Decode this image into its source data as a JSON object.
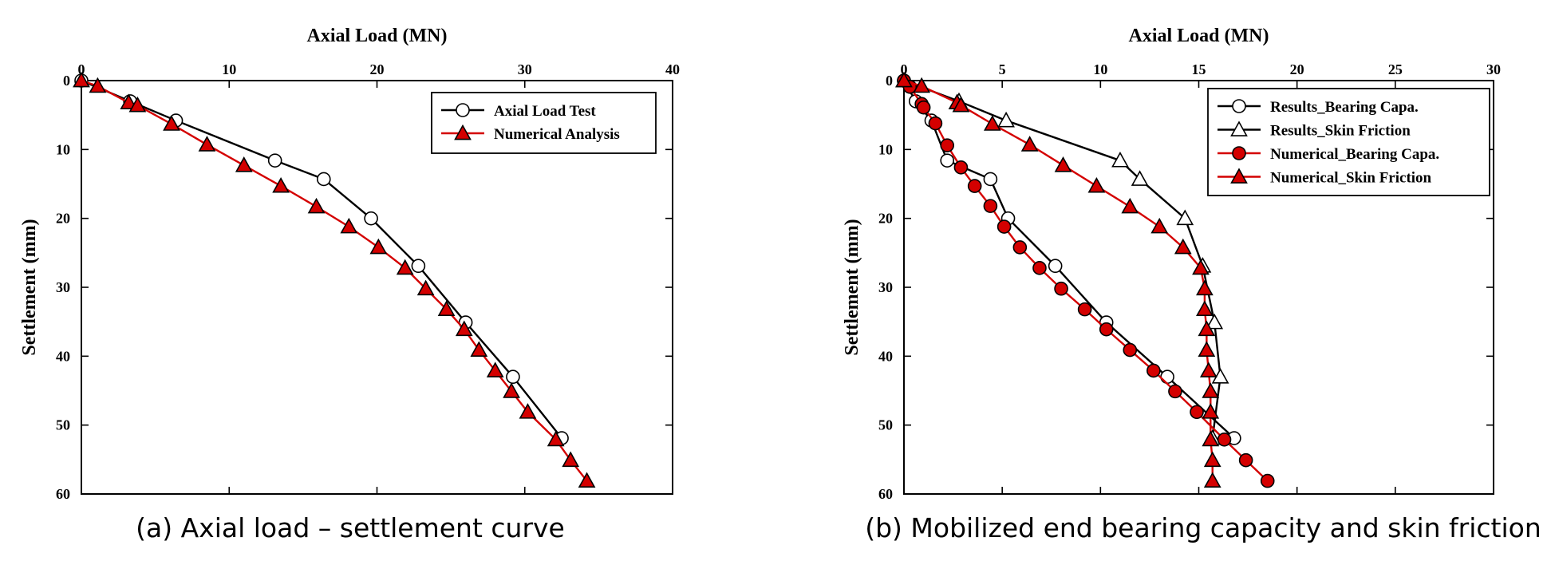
{
  "chart_data": [
    {
      "type": "line",
      "title": "",
      "xlabel": "Axial Load (MN)",
      "ylabel": "Settlement (mm)",
      "xlim": [
        0,
        40
      ],
      "ylim": [
        0,
        60
      ],
      "x_ticks": [
        0,
        10,
        20,
        30,
        40
      ],
      "y_ticks": [
        0,
        10,
        20,
        30,
        40,
        50,
        60
      ],
      "y_inverted": true,
      "x_axis_position": "top",
      "grid": false,
      "legend_position": "top-right",
      "caption": "(a) Axial load – settlement curve",
      "series": [
        {
          "name": "Axial Load Test",
          "color": "#000000",
          "marker": "circle-open",
          "points": [
            [
              0,
              0
            ],
            [
              3.3,
              3
            ],
            [
              6.4,
              5.8
            ],
            [
              13.1,
              11.6
            ],
            [
              16.4,
              14.3
            ],
            [
              19.6,
              20
            ],
            [
              22.8,
              26.9
            ],
            [
              26,
              35.1
            ],
            [
              29.2,
              43
            ],
            [
              32.5,
              51.9
            ]
          ]
        },
        {
          "name": "Numerical Analysis",
          "color": "#d40000",
          "marker": "triangle-filled",
          "points": [
            [
              0,
              0
            ],
            [
              1.1,
              0.8
            ],
            [
              3.2,
              3.2
            ],
            [
              3.8,
              3.6
            ],
            [
              6.1,
              6.3
            ],
            [
              8.5,
              9.3
            ],
            [
              11,
              12.3
            ],
            [
              13.5,
              15.3
            ],
            [
              15.9,
              18.3
            ],
            [
              18.1,
              21.2
            ],
            [
              20.1,
              24.2
            ],
            [
              21.9,
              27.2
            ],
            [
              23.3,
              30.2
            ],
            [
              24.7,
              33.2
            ],
            [
              25.9,
              36.1
            ],
            [
              26.9,
              39.1
            ],
            [
              28,
              42.1
            ],
            [
              29.1,
              45.1
            ],
            [
              30.2,
              48.1
            ],
            [
              32.1,
              52.1
            ],
            [
              33.1,
              55.1
            ],
            [
              34.2,
              58.1
            ]
          ]
        }
      ]
    },
    {
      "type": "line",
      "title": "",
      "xlabel": "Axial Load (MN)",
      "ylabel": "Settlement (mm)",
      "xlim": [
        0,
        30
      ],
      "ylim": [
        0,
        60
      ],
      "x_ticks": [
        0,
        5,
        10,
        15,
        20,
        25,
        30
      ],
      "y_ticks": [
        0,
        10,
        20,
        30,
        40,
        50,
        60
      ],
      "y_inverted": true,
      "x_axis_position": "top",
      "grid": false,
      "legend_position": "top-right",
      "caption": "(b) Mobilized end bearing capacity and skin friction",
      "series": [
        {
          "name": "Results_Bearing Capa.",
          "color": "#000000",
          "marker": "circle-open",
          "points": [
            [
              0,
              0
            ],
            [
              0.6,
              3
            ],
            [
              1.4,
              5.8
            ],
            [
              2.2,
              11.6
            ],
            [
              4.4,
              14.3
            ],
            [
              5.3,
              20
            ],
            [
              7.7,
              26.9
            ],
            [
              10.3,
              35.1
            ],
            [
              13.4,
              43
            ],
            [
              16.8,
              51.9
            ]
          ]
        },
        {
          "name": "Results_Skin Friction",
          "color": "#000000",
          "marker": "triangle-open",
          "points": [
            [
              0,
              0
            ],
            [
              2.8,
              3
            ],
            [
              5.2,
              5.8
            ],
            [
              11,
              11.6
            ],
            [
              12,
              14.3
            ],
            [
              14.3,
              20
            ],
            [
              15.2,
              26.9
            ],
            [
              15.8,
              35.1
            ],
            [
              16.1,
              43
            ],
            [
              15.7,
              51.9
            ]
          ]
        },
        {
          "name": "Numerical_Bearing Capa.",
          "color": "#d40000",
          "marker": "circle-filled",
          "points": [
            [
              0,
              0
            ],
            [
              0.3,
              0.9
            ],
            [
              0.9,
              3.4
            ],
            [
              1.0,
              3.9
            ],
            [
              1.6,
              6.2
            ],
            [
              2.2,
              9.4
            ],
            [
              2.9,
              12.6
            ],
            [
              3.6,
              15.3
            ],
            [
              4.4,
              18.2
            ],
            [
              5.1,
              21.2
            ],
            [
              5.9,
              24.2
            ],
            [
              6.9,
              27.2
            ],
            [
              8.0,
              30.2
            ],
            [
              9.2,
              33.2
            ],
            [
              10.3,
              36.1
            ],
            [
              11.5,
              39.1
            ],
            [
              12.7,
              42.1
            ],
            [
              13.8,
              45.1
            ],
            [
              14.9,
              48.1
            ],
            [
              16.3,
              52.1
            ],
            [
              17.4,
              55.1
            ],
            [
              18.5,
              58.1
            ]
          ]
        },
        {
          "name": "Numerical_Skin Friction",
          "color": "#d40000",
          "marker": "triangle-filled",
          "points": [
            [
              0,
              0
            ],
            [
              0.9,
              0.8
            ],
            [
              2.7,
              3.2
            ],
            [
              2.9,
              3.6
            ],
            [
              4.5,
              6.3
            ],
            [
              6.4,
              9.3
            ],
            [
              8.1,
              12.3
            ],
            [
              9.8,
              15.3
            ],
            [
              11.5,
              18.3
            ],
            [
              13.0,
              21.2
            ],
            [
              14.2,
              24.2
            ],
            [
              15.1,
              27.2
            ],
            [
              15.3,
              30.2
            ],
            [
              15.3,
              33.2
            ],
            [
              15.4,
              36.1
            ],
            [
              15.4,
              39.1
            ],
            [
              15.5,
              42.1
            ],
            [
              15.6,
              45.1
            ],
            [
              15.6,
              48.1
            ],
            [
              15.6,
              52.1
            ],
            [
              15.7,
              55.1
            ],
            [
              15.7,
              58.1
            ]
          ]
        }
      ]
    }
  ]
}
